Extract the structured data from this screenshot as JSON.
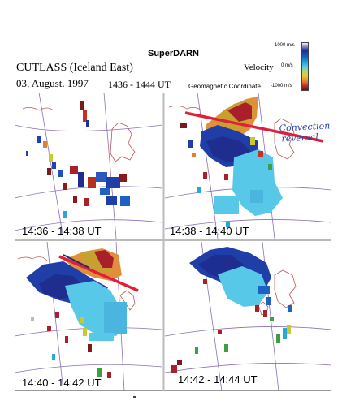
{
  "header": {
    "title": "SuperDARN",
    "radar": "CUTLASS (Iceland East)",
    "date": "03, August. 1997",
    "time_range": "1436 - 1444 UT",
    "velocity_label": "Velocity",
    "coordinate": "Geomagnetic Coordinate"
  },
  "colorbar": {
    "ticks": [
      "1000 m/s",
      "0 m/s",
      "-1000 m/s"
    ],
    "colors": [
      "#6d1016",
      "#e07d2a",
      "#e8c83a",
      "#58c8e8",
      "#1f61c2",
      "#1f2d8f"
    ]
  },
  "panels": [
    {
      "label": "14:36 - 14:38 UT"
    },
    {
      "label": "14:38 - 14:40 UT"
    },
    {
      "label": "14:40 - 14:42 UT"
    },
    {
      "label": "14:42 - 14:44 UT"
    }
  ],
  "annotation": {
    "line1": "Convection",
    "line2": "reversal"
  },
  "colors": {
    "reversal_line": "#e0203a",
    "grid_line": "#8a6fb8",
    "coast": "#b8584f"
  }
}
